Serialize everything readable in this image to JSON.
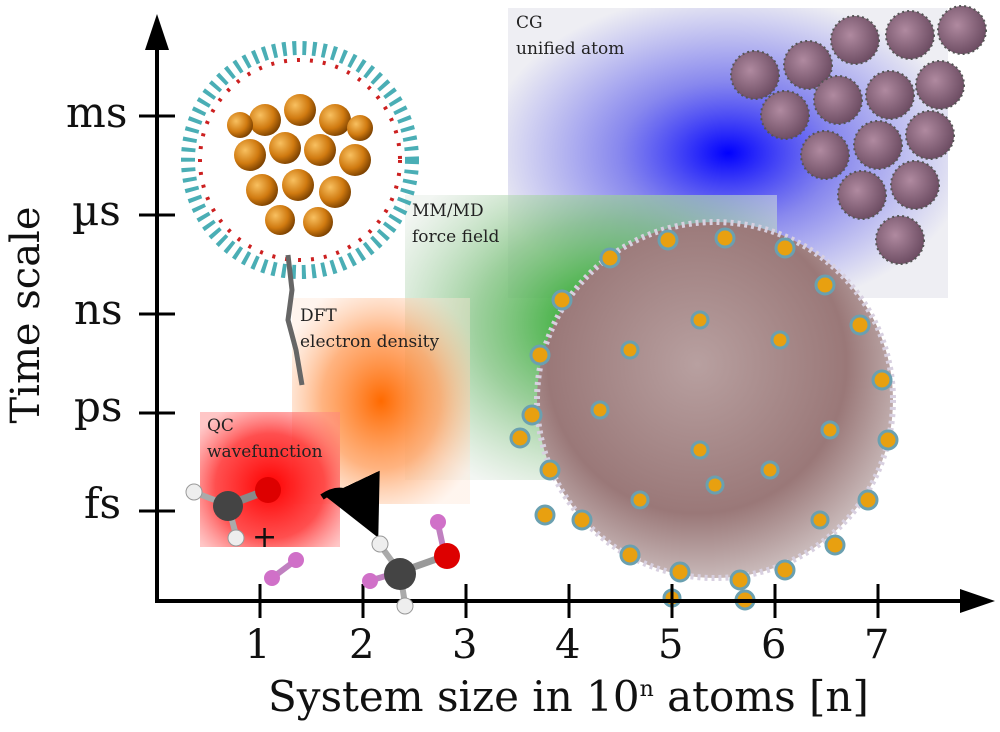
{
  "axes": {
    "y_title": "Time scale",
    "x_title": "System size in 10",
    "x_title_sup": "n",
    "x_title_suffix": " atoms [n]",
    "y_ticks": [
      "ms",
      "µs",
      "ns",
      "ps",
      "fs"
    ],
    "x_ticks": [
      "1",
      "2",
      "3",
      "4",
      "5",
      "6",
      "7"
    ]
  },
  "regions": [
    {
      "line1": "QC",
      "line2": "wavefunction",
      "color": "#ff1010"
    },
    {
      "line1": "DFT",
      "line2": "electron density",
      "color": "#ff7a10"
    },
    {
      "line1": "MM/MD",
      "line2": "force field",
      "color": "#1e9a1e"
    },
    {
      "line1": "CG",
      "line2": "unified atom",
      "color": "#1515ff"
    }
  ],
  "reaction": {
    "plus": "+"
  },
  "illustrations": {
    "nanoparticle_icon": "gold-nanoparticle-icon",
    "large_assembly_icon": "vesicle-with-nanoparticles-icon",
    "cg_lattice_icon": "cg-particle-lattice-icon",
    "molecule_icon": "molecule-icon"
  }
}
